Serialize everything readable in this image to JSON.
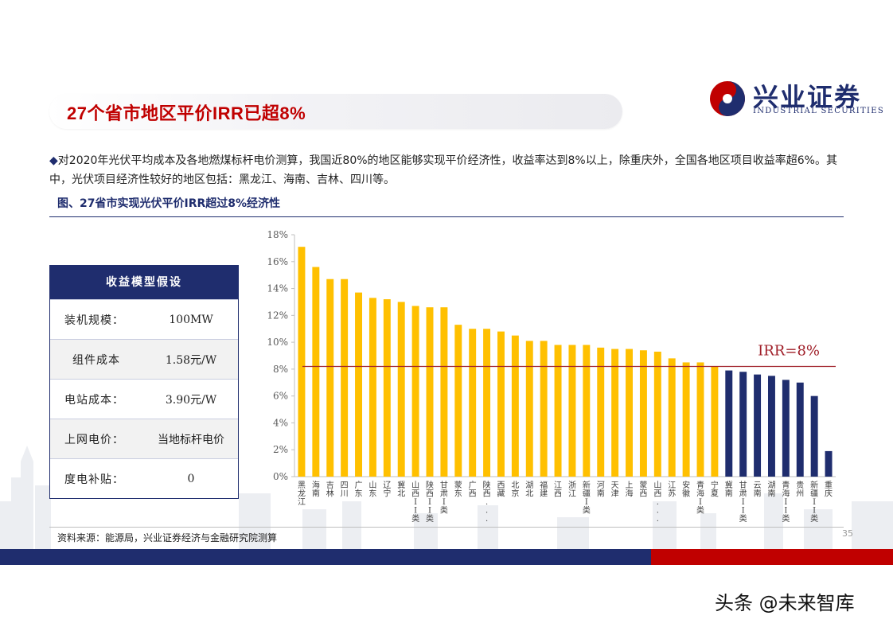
{
  "header": {
    "title": "27个省市地区平价IRR已超8%",
    "logo_cn": "兴业证券",
    "logo_en": "INDUSTRIAL SECURITIES"
  },
  "bullet": {
    "mark": "◆",
    "text": "对2020年光伏平均成本及各地燃煤标杆电价测算，我国近80%的地区能够实现平价经济性，收益率达到8%以上，除重庆外，全国各地区项目收益率超6%。其中，光伏项目经济性较好的地区包括：黑龙江、海南、吉林、四川等。"
  },
  "figure_title": "图、27省市实现光伏平价IRR超过8%经济性",
  "assumptions": {
    "header": "收益模型假设",
    "rows": [
      {
        "label": "装机规模：",
        "value": "100MW"
      },
      {
        "label": "组件成本",
        "value": "1.58元/W"
      },
      {
        "label": "电站成本：",
        "value": "3.90元/W"
      },
      {
        "label": "上网电价：",
        "value": "当地标杆电价"
      },
      {
        "label": "度电补贴：",
        "value": "0"
      }
    ]
  },
  "chart_data": {
    "type": "bar",
    "title": "",
    "xlabel": "",
    "ylabel": "",
    "ylim": [
      0,
      18
    ],
    "yticks": [
      "0%",
      "2%",
      "4%",
      "6%",
      "8%",
      "10%",
      "12%",
      "14%",
      "16%",
      "18%"
    ],
    "grid": false,
    "categories": [
      "黑龙江",
      "海南",
      "吉林",
      "四川",
      "广东",
      "山东",
      "辽宁",
      "冀北",
      "山西II类",
      "陕西II类",
      "甘肃I类",
      "蒙东",
      "广西",
      "陕西...",
      "西藏",
      "北京",
      "湖北",
      "福建",
      "江西",
      "浙江",
      "新疆I类",
      "河南",
      "天津",
      "上海",
      "蒙西",
      "山西...",
      "江苏",
      "安徽",
      "青海I类",
      "宁夏",
      "冀南",
      "甘肃II类",
      "云南",
      "湖南",
      "青海II类",
      "贵州",
      "新疆II类",
      "重庆"
    ],
    "values": [
      17.1,
      15.6,
      14.7,
      14.7,
      13.7,
      13.3,
      13.2,
      13.0,
      12.7,
      12.6,
      12.6,
      11.3,
      11.0,
      11.0,
      10.8,
      10.5,
      10.1,
      10.1,
      9.8,
      9.8,
      9.8,
      9.6,
      9.5,
      9.5,
      9.4,
      9.3,
      8.8,
      8.5,
      8.5,
      8.2,
      7.9,
      7.8,
      7.6,
      7.5,
      7.2,
      7.0,
      6.0,
      1.9
    ],
    "above_color": "#ffc000",
    "below_color": "#1f2d6e",
    "reference_line": {
      "value": 8.2,
      "label": "IRR=8%",
      "color": "#a0202a"
    }
  },
  "footer": {
    "source": "资料来源：能源局，兴业证券经济与金融研究院测算",
    "page_number": "35",
    "watermark": "头条 @未来智库"
  }
}
